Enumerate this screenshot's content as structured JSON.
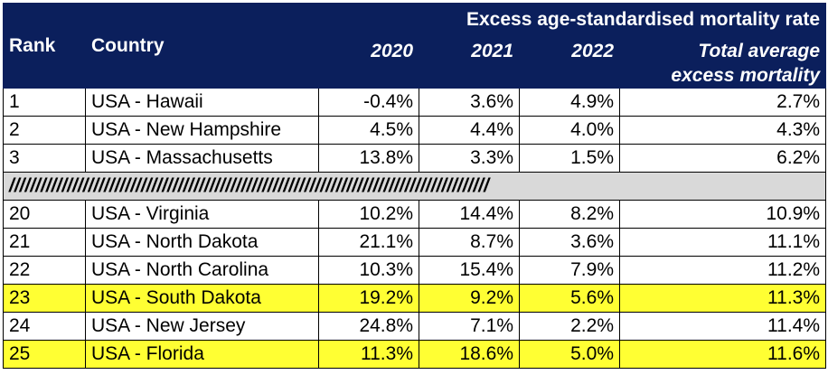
{
  "header": {
    "rank": "Rank",
    "country": "Country",
    "group": "Excess age-standardised mortality rate",
    "years": [
      "2020",
      "2021",
      "2022"
    ],
    "total_line1": "Total average",
    "total_line2": "excess mortality"
  },
  "rows_top": [
    {
      "rank": "1",
      "country": "USA - Hawaii",
      "y2020": "-0.4%",
      "y2021": "3.6%",
      "y2022": "4.9%",
      "total": "2.7%"
    },
    {
      "rank": "2",
      "country": "USA - New Hampshire",
      "y2020": "4.5%",
      "y2021": "4.4%",
      "y2022": "4.0%",
      "total": "4.3%"
    },
    {
      "rank": "3",
      "country": "USA - Massachusetts",
      "y2020": "13.8%",
      "y2021": "3.3%",
      "y2022": "1.5%",
      "total": "6.2%"
    }
  ],
  "separator": "///////////////////////////////////////////////////////////////////////////////////////////",
  "rows_bottom": [
    {
      "rank": "20",
      "country": "USA - Virginia",
      "y2020": "10.2%",
      "y2021": "14.4%",
      "y2022": "8.2%",
      "total": "10.9%"
    },
    {
      "rank": "21",
      "country": "USA - North Dakota",
      "y2020": "21.1%",
      "y2021": "8.7%",
      "y2022": "3.6%",
      "total": "11.1%"
    },
    {
      "rank": "22",
      "country": "USA - North Carolina",
      "y2020": "10.3%",
      "y2021": "15.4%",
      "y2022": "7.9%",
      "total": "11.2%"
    },
    {
      "rank": "23",
      "country": "USA - South Dakota",
      "y2020": "19.2%",
      "y2021": "9.2%",
      "y2022": "5.6%",
      "total": "11.3%"
    },
    {
      "rank": "24",
      "country": "USA - New Jersey",
      "y2020": "24.8%",
      "y2021": "7.1%",
      "y2022": "2.2%",
      "total": "11.4%"
    },
    {
      "rank": "25",
      "country": "USA - Florida",
      "y2020": "11.3%",
      "y2021": "18.6%",
      "y2022": "5.0%",
      "total": "11.6%"
    }
  ],
  "highlighted_ranks": [
    "23",
    "25"
  ],
  "colors": {
    "header_bg": "#0b1f5c",
    "highlight": "#ffff33",
    "separator_bg": "#d9d9d9"
  }
}
